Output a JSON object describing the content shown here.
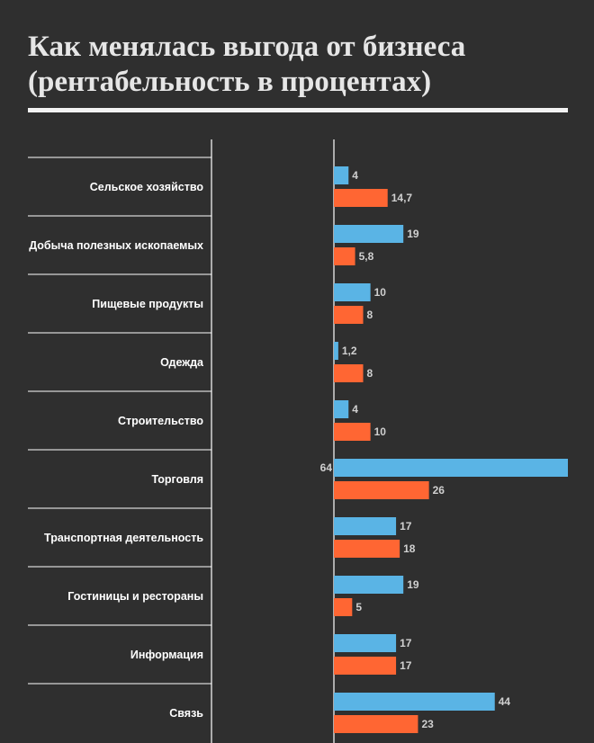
{
  "title_line1": "Как менялась выгода от бизнеса",
  "title_line2": "(рентабельность в процентах)",
  "colors": {
    "background": "#2f2f2f",
    "series_blue": "#5ab4e5",
    "series_orange": "#ff6633",
    "text": "#e6e6e6"
  },
  "chart_data": {
    "type": "bar",
    "orientation": "horizontal",
    "categories": [
      "Сельское хозяйство",
      "Добыча полезных ископаемых",
      "Пищевые продукты",
      "Одежда",
      "Строительство",
      "Торговля",
      "Транспортная деятельность",
      "Гостиницы и рестораны",
      "Информация",
      "Связь"
    ],
    "series": [
      {
        "color": "#5ab4e5",
        "values": [
          4,
          19,
          10,
          1.2,
          4,
          64,
          17,
          19,
          17,
          44
        ],
        "labels": [
          "4",
          "19",
          "10",
          "1,2",
          "4",
          "64",
          "17",
          "19",
          "17",
          "44"
        ]
      },
      {
        "color": "#ff6633",
        "values": [
          14.7,
          5.8,
          8,
          8,
          10,
          26,
          18,
          5,
          17,
          23
        ],
        "labels": [
          "14,7",
          "5,8",
          "8",
          "8",
          "10",
          "26",
          "18",
          "5",
          "17",
          "23"
        ]
      }
    ],
    "xlim": [
      0,
      64
    ],
    "legend": "none",
    "grid": false
  }
}
